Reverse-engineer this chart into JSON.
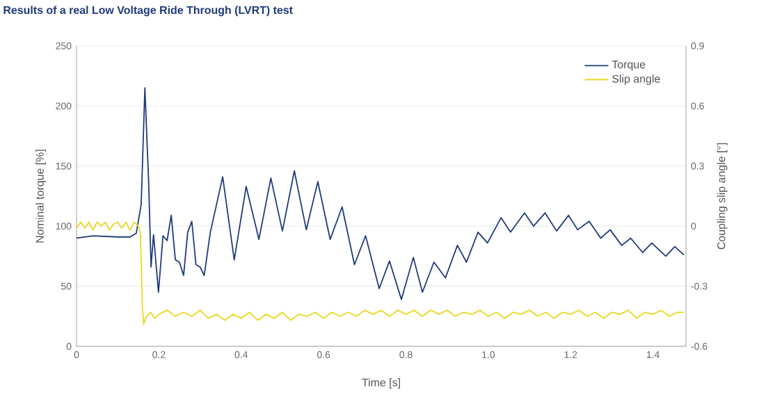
{
  "chart_data": {
    "type": "line",
    "title": "Results of a real Low Voltage Ride Through (LVRT) test",
    "xlabel": "Time [s]",
    "ylabel": "Nominal torque [%]",
    "y2label": "Coupling slip angle [°]",
    "xlim": [
      0,
      1.48
    ],
    "xticks": [
      0,
      0.2,
      0.4,
      0.6,
      0.8,
      {
        "value": 1,
        "label": "1.0"
      },
      1.2,
      1.4
    ],
    "ylim": [
      0,
      250
    ],
    "yticks": [
      0,
      50,
      100,
      150,
      200,
      250
    ],
    "y2lim": [
      -0.6,
      0.9
    ],
    "y2ticks": [
      -0.6,
      -0.3,
      0,
      0.3,
      0.6,
      0.9
    ],
    "grid": "y",
    "legend": "top right",
    "series": [
      {
        "name": "Torque",
        "color": "#1f3a7a",
        "x": [
          0,
          0.04,
          0.1,
          0.13,
          0.145,
          0.157,
          0.166,
          0.175,
          0.181,
          0.187,
          0.199,
          0.21,
          0.22,
          0.23,
          0.24,
          0.25,
          0.26,
          0.27,
          0.28,
          0.29,
          0.3,
          0.31,
          0.325,
          0.355,
          0.383,
          0.412,
          0.443,
          0.472,
          0.5,
          0.529,
          0.558,
          0.586,
          0.616,
          0.645,
          0.675,
          0.702,
          0.735,
          0.76,
          0.789,
          0.818,
          0.84,
          0.868,
          0.896,
          0.925,
          0.947,
          0.975,
          0.998,
          1.031,
          1.054,
          1.088,
          1.11,
          1.138,
          1.166,
          1.195,
          1.217,
          1.245,
          1.273,
          1.296,
          1.324,
          1.346,
          1.375,
          1.397,
          1.431,
          1.453,
          1.475
        ],
        "values": [
          90,
          92,
          91,
          91,
          94,
          118,
          215,
          138,
          66,
          93,
          45,
          92,
          88,
          109,
          72,
          70,
          59,
          95,
          104,
          68,
          66,
          59,
          95,
          141,
          72,
          133,
          89,
          140,
          96,
          146,
          97,
          137,
          89,
          116,
          68,
          92,
          48,
          71,
          39,
          74,
          45,
          70,
          57,
          84,
          70,
          95,
          86,
          107,
          95,
          111,
          100,
          111,
          96,
          109,
          97,
          104,
          90,
          97,
          84,
          90,
          78,
          86,
          75,
          83,
          76
        ]
      },
      {
        "name": "Slip angle",
        "color": "#e8d820",
        "axis": "y2",
        "x": [
          0,
          0.01,
          0.02,
          0.03,
          0.04,
          0.05,
          0.06,
          0.07,
          0.08,
          0.09,
          0.1,
          0.11,
          0.12,
          0.13,
          0.14,
          0.15,
          0.155,
          0.16,
          0.163,
          0.17,
          0.18,
          0.19,
          0.2,
          0.22,
          0.24,
          0.26,
          0.28,
          0.3,
          0.32,
          0.34,
          0.36,
          0.38,
          0.4,
          0.42,
          0.44,
          0.46,
          0.48,
          0.5,
          0.52,
          0.54,
          0.56,
          0.58,
          0.6,
          0.62,
          0.64,
          0.66,
          0.68,
          0.7,
          0.72,
          0.74,
          0.76,
          0.78,
          0.8,
          0.82,
          0.84,
          0.86,
          0.88,
          0.9,
          0.92,
          0.94,
          0.96,
          0.98,
          1.0,
          1.02,
          1.04,
          1.06,
          1.08,
          1.1,
          1.12,
          1.14,
          1.16,
          1.18,
          1.2,
          1.22,
          1.24,
          1.26,
          1.28,
          1.3,
          1.32,
          1.34,
          1.36,
          1.38,
          1.4,
          1.42,
          1.44,
          1.46,
          1.475
        ],
        "values": [
          -0.01,
          0.02,
          -0.01,
          0.02,
          -0.02,
          0.02,
          0.0,
          0.02,
          -0.02,
          0.01,
          0.02,
          -0.01,
          0.02,
          -0.02,
          0.02,
          0.0,
          -0.03,
          -0.4,
          -0.49,
          -0.45,
          -0.43,
          -0.46,
          -0.44,
          -0.42,
          -0.45,
          -0.43,
          -0.45,
          -0.42,
          -0.46,
          -0.44,
          -0.47,
          -0.44,
          -0.46,
          -0.43,
          -0.47,
          -0.44,
          -0.46,
          -0.43,
          -0.47,
          -0.44,
          -0.45,
          -0.43,
          -0.46,
          -0.43,
          -0.45,
          -0.43,
          -0.45,
          -0.42,
          -0.44,
          -0.42,
          -0.45,
          -0.42,
          -0.44,
          -0.42,
          -0.45,
          -0.42,
          -0.44,
          -0.42,
          -0.45,
          -0.43,
          -0.44,
          -0.42,
          -0.45,
          -0.43,
          -0.46,
          -0.43,
          -0.44,
          -0.42,
          -0.45,
          -0.43,
          -0.46,
          -0.43,
          -0.44,
          -0.42,
          -0.45,
          -0.43,
          -0.46,
          -0.43,
          -0.44,
          -0.42,
          -0.46,
          -0.43,
          -0.44,
          -0.42,
          -0.45,
          -0.43,
          -0.43
        ]
      }
    ]
  }
}
